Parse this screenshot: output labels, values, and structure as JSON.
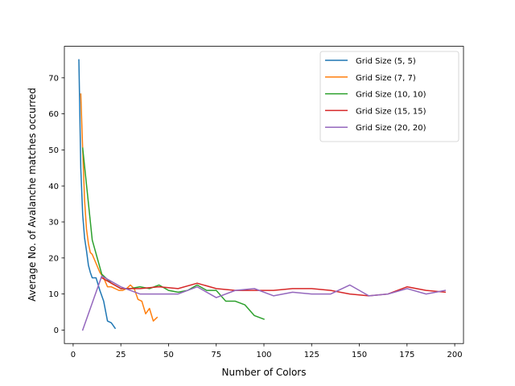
{
  "chart_data": {
    "type": "line",
    "title": "",
    "xlabel": "Number of Colors",
    "ylabel": "Average No. of Avalanche matches occurred",
    "xlim": [
      -4.6,
      204.6
    ],
    "ylim": [
      -3.75,
      78.75
    ],
    "xticks": [
      0,
      25,
      50,
      75,
      100,
      125,
      150,
      175,
      200
    ],
    "yticks": [
      0,
      10,
      20,
      30,
      40,
      50,
      60,
      70
    ],
    "grid": false,
    "legend_position": "upper right",
    "series": [
      {
        "name": "Grid Size (5, 5)",
        "color": "#1f77b4",
        "x": [
          3,
          4,
          5,
          6,
          7,
          8,
          9,
          10,
          12,
          14,
          16,
          18,
          20,
          22
        ],
        "y": [
          75,
          45,
          32,
          25.5,
          22,
          18,
          16,
          14.5,
          14.5,
          11,
          8,
          2.5,
          2,
          0.5
        ]
      },
      {
        "name": "Grid Size (7, 7)",
        "color": "#ff7f0e",
        "x": [
          4,
          5,
          6,
          7,
          8,
          9,
          10,
          12,
          14,
          16,
          18,
          20,
          22,
          24,
          26,
          28,
          30,
          32,
          34,
          36,
          38,
          40,
          42,
          44
        ],
        "y": [
          65.5,
          50,
          36,
          28,
          24,
          21.5,
          21,
          18.5,
          16,
          14.5,
          12,
          12,
          11.5,
          11,
          11,
          11.5,
          12.5,
          11.5,
          8.5,
          8,
          4.5,
          6,
          2.5,
          3.5
        ]
      },
      {
        "name": "Grid Size (10, 10)",
        "color": "#2ca02c",
        "x": [
          5,
          10,
          15,
          20,
          25,
          30,
          35,
          40,
          45,
          50,
          55,
          60,
          65,
          70,
          75,
          80,
          85,
          90,
          95,
          100
        ],
        "y": [
          50.5,
          25,
          15.5,
          13,
          11.5,
          11.5,
          12,
          11.5,
          12.5,
          11,
          10.5,
          11,
          12.5,
          11,
          11,
          8,
          8,
          7,
          4,
          3
        ]
      },
      {
        "name": "Grid Size (15, 15)",
        "color": "#d62728",
        "x": [
          15,
          25,
          35,
          45,
          55,
          65,
          75,
          85,
          95,
          105,
          115,
          125,
          135,
          145,
          155,
          165,
          175,
          185,
          195
        ],
        "y": [
          14.5,
          11.5,
          11.5,
          12,
          11.5,
          13,
          11.5,
          11,
          11,
          11,
          11.5,
          11.5,
          11,
          10,
          9.5,
          10,
          12,
          11,
          10.5
        ]
      },
      {
        "name": "Grid Size (20, 20)",
        "color": "#9467bd",
        "x": [
          5,
          15,
          25,
          35,
          45,
          55,
          65,
          75,
          85,
          95,
          105,
          115,
          125,
          135,
          145,
          155,
          165,
          175,
          185,
          195
        ],
        "y": [
          0,
          15,
          12,
          10,
          10,
          10,
          12,
          9,
          11,
          11.5,
          9.5,
          10.5,
          10,
          10,
          12.5,
          9.5,
          10,
          11.5,
          10,
          11
        ]
      }
    ]
  }
}
